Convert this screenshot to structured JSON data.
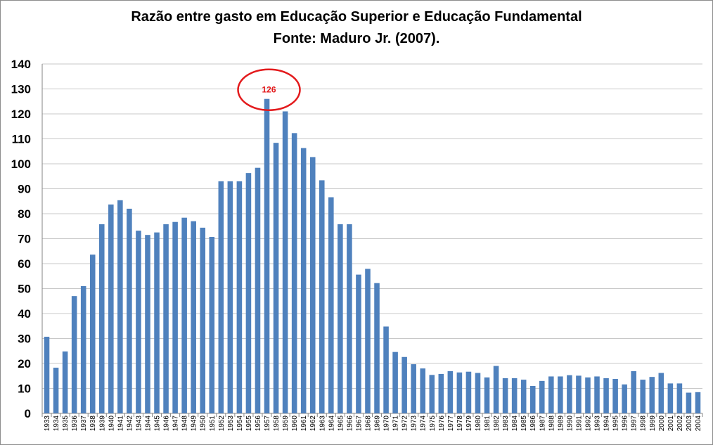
{
  "chart_data": {
    "type": "bar",
    "title": "Razão entre gasto em Educação Superior e Educação Fundamental",
    "subtitle": "Fonte:  Maduro Jr. (2007).",
    "xlabel": "",
    "ylabel": "",
    "ylim": [
      0,
      140
    ],
    "yticks": [
      0,
      10,
      20,
      30,
      40,
      50,
      60,
      70,
      80,
      90,
      100,
      110,
      120,
      130,
      140
    ],
    "grid": true,
    "legend": "none",
    "bar_color": "#4f81bd",
    "grid_color": "#c8c8c8",
    "categories": [
      "1933",
      "1934",
      "1935",
      "1936",
      "1937",
      "1938",
      "1939",
      "1940",
      "1941",
      "1942",
      "1943",
      "1944",
      "1945",
      "1946",
      "1947",
      "1948",
      "1949",
      "1950",
      "1951",
      "1952",
      "1953",
      "1954",
      "1955",
      "1956",
      "1957",
      "1958",
      "1959",
      "1960",
      "1961",
      "1962",
      "1963",
      "1964",
      "1965",
      "1966",
      "1967",
      "1968",
      "1969",
      "1970",
      "1971",
      "1972",
      "1973",
      "1974",
      "1975",
      "1976",
      "1977",
      "1978",
      "1979",
      "1980",
      "1981",
      "1982",
      "1983",
      "1984",
      "1985",
      "1986",
      "1987",
      "1988",
      "1989",
      "1990",
      "1991",
      "1992",
      "1993",
      "1994",
      "1995",
      "1996",
      "1997",
      "1998",
      "1999",
      "2000",
      "2001",
      "2002",
      "2003",
      "2004"
    ],
    "values": [
      30.7,
      18.3,
      24.8,
      47,
      51,
      63.6,
      75.8,
      83.7,
      85.4,
      82,
      73.2,
      71.5,
      72.5,
      75.8,
      76.7,
      78.4,
      77,
      74.4,
      70.7,
      93,
      93,
      93,
      96.3,
      98.4,
      126,
      108.4,
      121,
      112.3,
      106.3,
      102.7,
      93.4,
      86.6,
      75.8,
      75.8,
      55.6,
      57.9,
      52.2,
      34.8,
      24.6,
      22.6,
      19.7,
      18,
      15.4,
      15.8,
      16.9,
      16.4,
      16.7,
      16.2,
      14.4,
      19,
      14.1,
      14.1,
      13.5,
      11,
      13,
      14.8,
      14.8,
      15.3,
      15.1,
      14.4,
      14.8,
      14.1,
      13.8,
      11.6,
      16.9,
      13.5,
      14.6,
      16.2,
      12,
      12,
      8.3,
      8.5
    ],
    "annotation": {
      "text": "126",
      "category": "1957",
      "value": 126,
      "shape": "ellipse",
      "color": "#e31a1c"
    }
  }
}
